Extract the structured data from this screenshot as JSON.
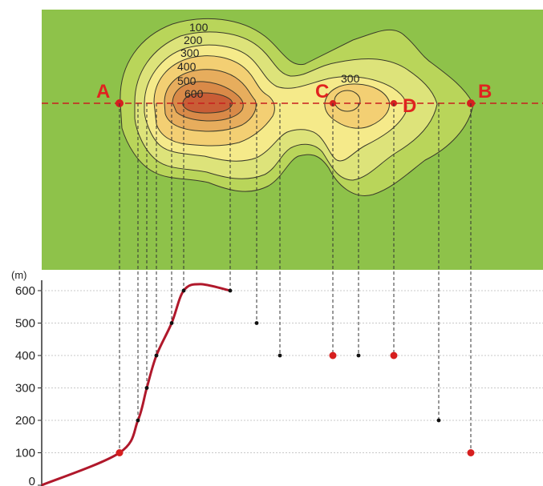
{
  "colors": {
    "map_background": "#8ec24a",
    "band_0_100": "#b9d55a",
    "band_100_200": "#dde37a",
    "band_200_300": "#f5ea8a",
    "band_300_400": "#f3cf73",
    "band_400_500": "#e7ad5d",
    "band_500_600": "#d98a48",
    "band_600_top": "#c95d36",
    "section_line": "#c81e1e",
    "profile_curve": "#b0182b",
    "red_point": "#d61f1f"
  },
  "map": {
    "contour_labels": [
      "100",
      "200",
      "300",
      "400",
      "500",
      "600"
    ],
    "right_hill_label": "300",
    "points": {
      "A": "A",
      "B": "B",
      "C": "C",
      "D": "D"
    }
  },
  "profile": {
    "unit": "(m)",
    "y_ticks": [
      "0",
      "100",
      "200",
      "300",
      "400",
      "500",
      "600"
    ]
  },
  "chart_data": {
    "type": "line",
    "ylabel": "(m)",
    "ylim": [
      0,
      600
    ],
    "y_ticks": [
      0,
      100,
      200,
      300,
      400,
      500,
      600
    ],
    "curve_series": {
      "y": [
        0,
        100,
        200,
        300,
        400,
        500,
        600,
        620,
        600
      ]
    },
    "points": [
      {
        "label": "A",
        "elevation": 100,
        "highlight": true
      },
      {
        "label": "",
        "elevation": 200,
        "highlight": false
      },
      {
        "label": "",
        "elevation": 300,
        "highlight": false
      },
      {
        "label": "",
        "elevation": 400,
        "highlight": false
      },
      {
        "label": "",
        "elevation": 500,
        "highlight": false
      },
      {
        "label": "",
        "elevation": 600,
        "highlight": false
      },
      {
        "label": "",
        "elevation": 600,
        "highlight": false
      },
      {
        "label": "",
        "elevation": 500,
        "highlight": false
      },
      {
        "label": "",
        "elevation": 400,
        "highlight": false
      },
      {
        "label": "C",
        "elevation": 400,
        "highlight": true
      },
      {
        "label": "",
        "elevation": 400,
        "highlight": false
      },
      {
        "label": "D",
        "elevation": 400,
        "highlight": true
      },
      {
        "label": "",
        "elevation": 200,
        "highlight": false
      },
      {
        "label": "B",
        "elevation": 100,
        "highlight": true
      }
    ]
  }
}
